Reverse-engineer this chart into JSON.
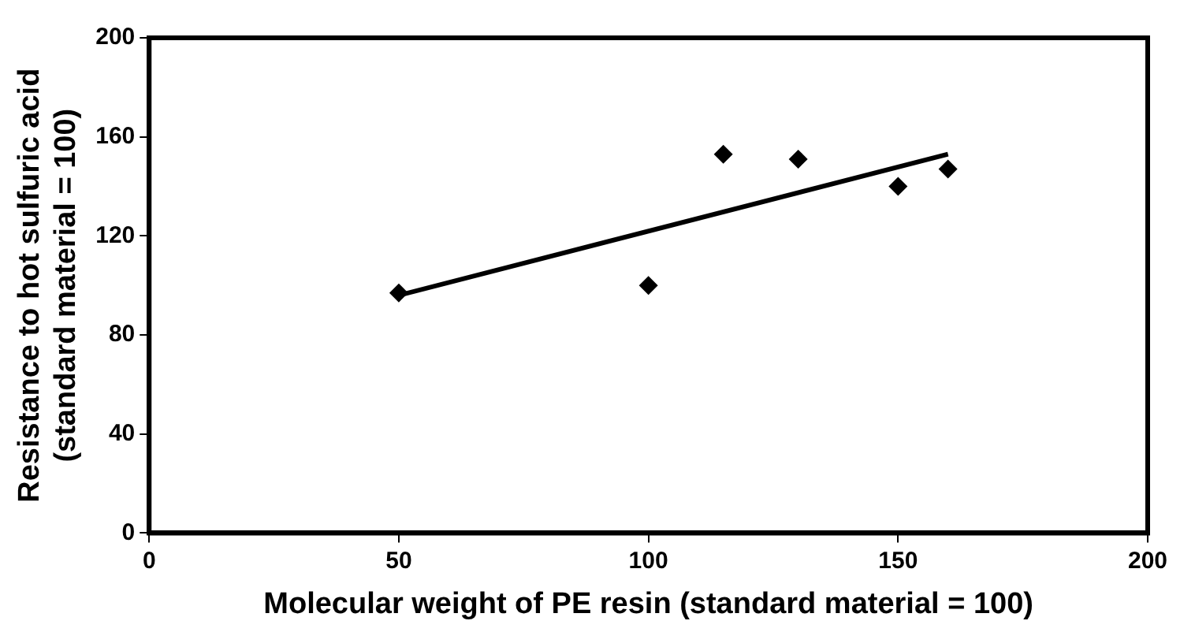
{
  "chart_data": {
    "type": "scatter",
    "xlabel": "Molecular weight of PE resin (standard material = 100)",
    "ylabel": "Resistance to hot sulfuric acid (standard material = 100)",
    "xlim": [
      0,
      200
    ],
    "xticks": [
      0,
      50,
      100,
      150,
      200
    ],
    "ylim": [
      0,
      200
    ],
    "yticks": [
      0,
      40,
      80,
      120,
      160,
      200
    ],
    "grid": false,
    "legend": false,
    "marker": "diamond",
    "series": [
      {
        "color": "#000000",
        "x": [
          50,
          100,
          115,
          130,
          150,
          160
        ],
        "values": [
          97,
          100,
          153,
          151,
          140,
          147
        ]
      },
      {
        "type": "line",
        "color": "#000000",
        "marker": "none",
        "x": [
          50,
          160
        ],
        "values": [
          96,
          153
        ]
      }
    ]
  }
}
